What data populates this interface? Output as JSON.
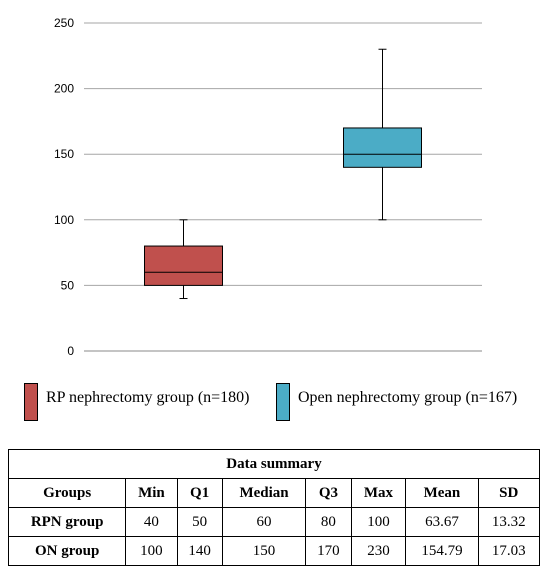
{
  "chart_data": {
    "type": "box",
    "title": "",
    "xlabel": "",
    "ylabel": "",
    "ylim": [
      0,
      250
    ],
    "yticks": [
      0,
      50,
      100,
      150,
      200,
      250
    ],
    "grid": true,
    "legend_position": "bottom",
    "series": [
      {
        "name": "RP nephrectomy group (n=180)",
        "min": 40,
        "q1": 50,
        "median": 60,
        "q3": 80,
        "max": 100,
        "color": "#c0504d"
      },
      {
        "name": "Open nephrectomy group (n=167)",
        "min": 100,
        "q1": 140,
        "median": 150,
        "q3": 170,
        "max": 230,
        "color": "#4bacc6"
      }
    ]
  },
  "table": {
    "title": "Data summary",
    "headers": [
      "Groups",
      "Min",
      "Q1",
      "Median",
      "Q3",
      "Max",
      "Mean",
      "SD"
    ],
    "rows": [
      [
        "RPN group",
        "40",
        "50",
        "60",
        "80",
        "100",
        "63.67",
        "13.32"
      ],
      [
        "ON group",
        "100",
        "140",
        "150",
        "170",
        "230",
        "154.79",
        "17.03"
      ]
    ]
  }
}
